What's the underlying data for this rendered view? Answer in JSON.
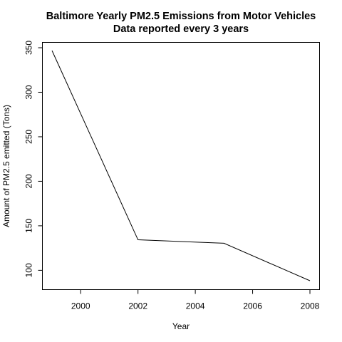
{
  "chart_data": {
    "type": "line",
    "title": "Baltimore Yearly PM2.5 Emissions from Motor Vehicles",
    "subtitle": "Data reported every 3 years",
    "xlabel": "Year",
    "ylabel": "Amount of PM2.5 emitted (Tons)",
    "x": [
      1999,
      2002,
      2005,
      2008
    ],
    "series": [
      {
        "values": [
          346.8,
          134.3,
          130.4,
          88.3
        ],
        "color": "#000000"
      }
    ],
    "xlim": [
      1999,
      2008
    ],
    "ylim": [
      88.3,
      346.8
    ],
    "x_ticks": [
      2000,
      2002,
      2004,
      2006,
      2008
    ],
    "x_tick_labels": [
      "2000",
      "2002",
      "2004",
      "2006",
      "2008"
    ],
    "y_ticks": [
      100,
      150,
      200,
      250,
      300,
      350
    ],
    "y_tick_labels": [
      "100",
      "150",
      "200",
      "250",
      "300",
      "350"
    ],
    "grid": false,
    "legend": "none"
  }
}
